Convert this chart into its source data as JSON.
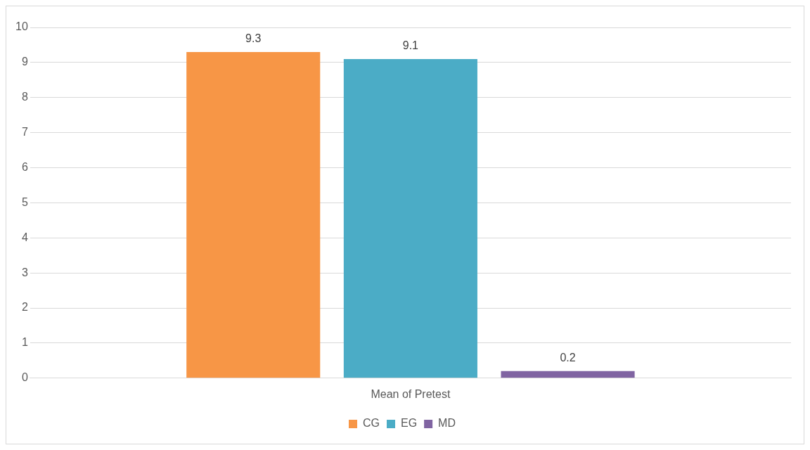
{
  "chart_data": {
    "type": "bar",
    "categories": [
      "Mean of Pretest"
    ],
    "series": [
      {
        "name": "CG",
        "color": "#f79646",
        "values": [
          9.3
        ]
      },
      {
        "name": "EG",
        "color": "#4bacc6",
        "values": [
          9.1
        ]
      },
      {
        "name": "MD",
        "color": "#8064a2",
        "values": [
          0.2
        ]
      }
    ],
    "ylim": [
      0,
      10
    ],
    "yticks": [
      0,
      1,
      2,
      3,
      4,
      5,
      6,
      7,
      8,
      9,
      10
    ],
    "grid": "y",
    "legend": "bottom",
    "data_labels": true
  }
}
